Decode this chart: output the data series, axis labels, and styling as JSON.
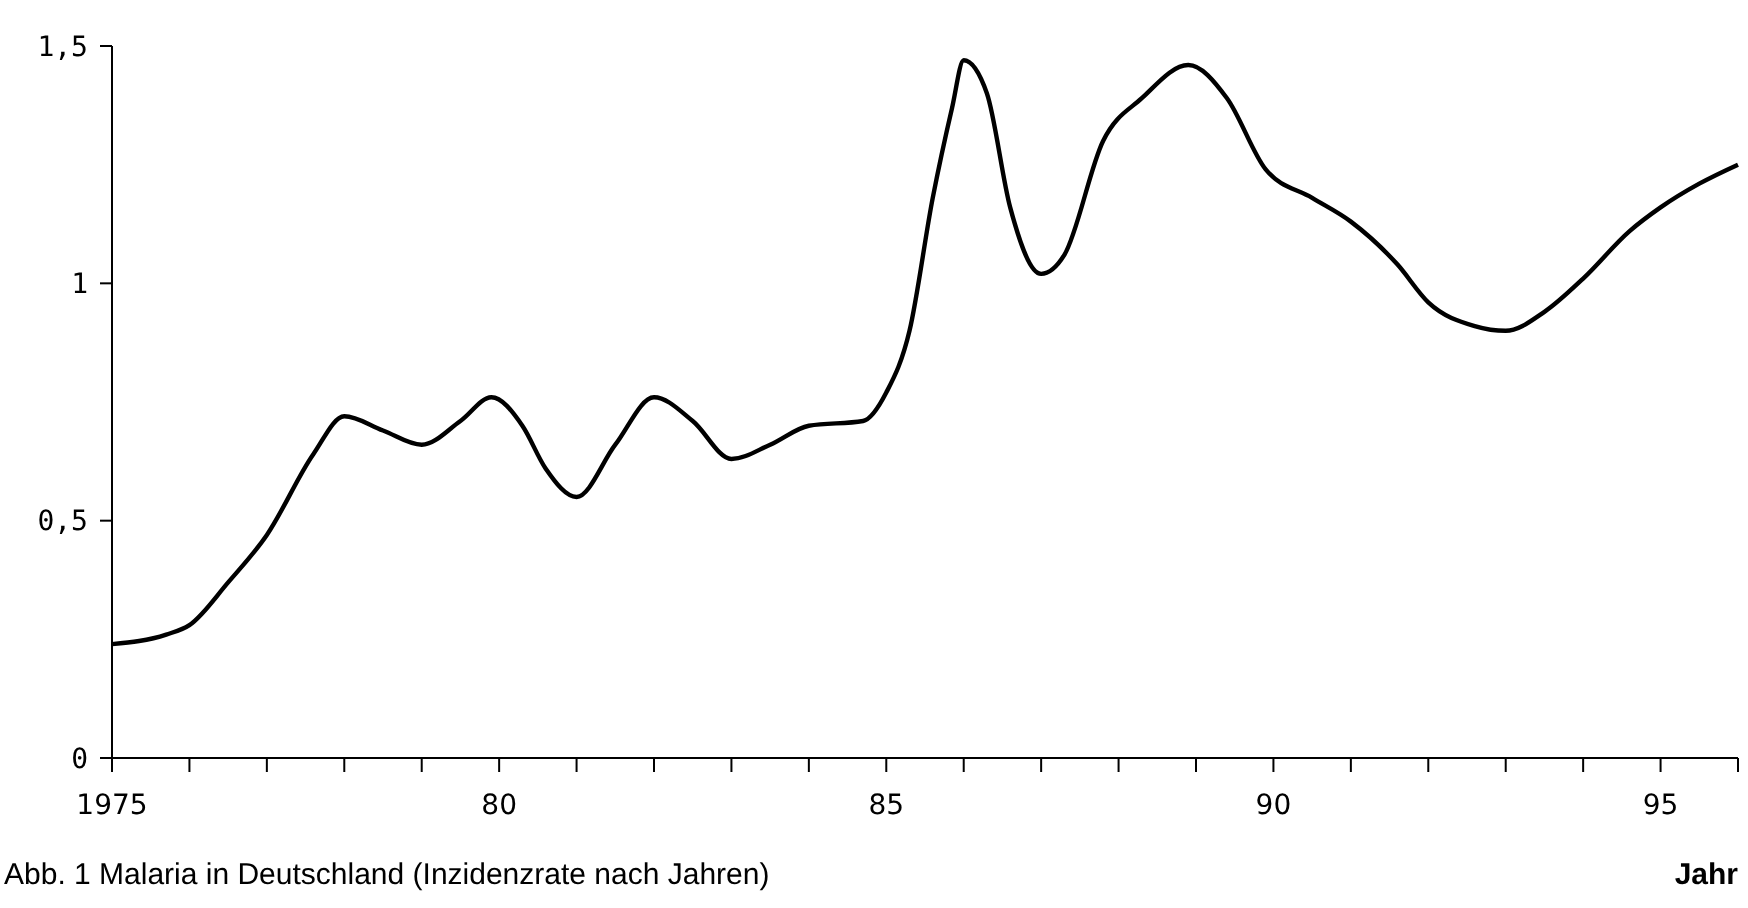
{
  "chart_data": {
    "type": "line",
    "xlabel": "Jahr",
    "annotations": [
      "Abb. 1  Malaria in Deutschland (Inzidenzrate nach Jahren)"
    ],
    "xlim": [
      1975,
      1996
    ],
    "ylim": [
      0,
      1.5
    ],
    "xticks": [
      1975,
      {
        "value": 1976,
        "label": null
      },
      {
        "value": 1977,
        "label": null
      },
      {
        "value": 1978,
        "label": null
      },
      {
        "value": 1979,
        "label": null
      },
      {
        "value": 1980,
        "label": "80"
      },
      {
        "value": 1981,
        "label": null
      },
      {
        "value": 1982,
        "label": null
      },
      {
        "value": 1983,
        "label": null
      },
      {
        "value": 1984,
        "label": null
      },
      {
        "value": 1985,
        "label": "85"
      },
      {
        "value": 1986,
        "label": null
      },
      {
        "value": 1987,
        "label": null
      },
      {
        "value": 1988,
        "label": null
      },
      {
        "value": 1989,
        "label": null
      },
      {
        "value": 1990,
        "label": "90"
      },
      {
        "value": 1991,
        "label": null
      },
      {
        "value": 1992,
        "label": null
      },
      {
        "value": 1993,
        "label": null
      },
      {
        "value": 1994,
        "label": null
      },
      {
        "value": 1995,
        "label": "95"
      },
      {
        "value": 1996,
        "label": null
      }
    ],
    "yticks": [
      0,
      {
        "value": 0.5,
        "label": "0,5"
      },
      1,
      {
        "value": 1.5,
        "label": "1,5"
      }
    ],
    "grid": false,
    "marker": "none",
    "line_style": "solid",
    "series": [
      {
        "color": "#000000",
        "x": [
          1975,
          1975.7,
          1976,
          1976.5,
          1977,
          1977.6,
          1978,
          1978.5,
          1979,
          1979.5,
          1979.9,
          1980.3,
          1980.6,
          1981,
          1981.5,
          1982,
          1982.5,
          1983,
          1983.5,
          1984,
          1984.7,
          1985,
          1985.3,
          1985.6,
          1985.85,
          1986,
          1986.3,
          1986.6,
          1987,
          1987.3,
          1987.8,
          1988.3,
          1988.9,
          1989.4,
          1989.9,
          1990.5,
          1991,
          1991.6,
          1992,
          1992.6,
          1993,
          1993.5,
          1994,
          1994.6,
          1995,
          1995.5,
          1996
        ],
        "values": [
          0.24,
          0.26,
          0.28,
          0.37,
          0.47,
          0.64,
          0.72,
          0.69,
          0.66,
          0.71,
          0.76,
          0.7,
          0.61,
          0.55,
          0.66,
          0.76,
          0.71,
          0.63,
          0.66,
          0.7,
          0.71,
          0.77,
          0.9,
          1.18,
          1.37,
          1.47,
          1.4,
          1.16,
          1.02,
          1.06,
          1.3,
          1.39,
          1.46,
          1.39,
          1.24,
          1.18,
          1.13,
          1.04,
          0.96,
          0.91,
          0.9,
          0.94,
          1.01,
          1.11,
          1.16,
          1.21,
          1.25
        ]
      }
    ]
  }
}
